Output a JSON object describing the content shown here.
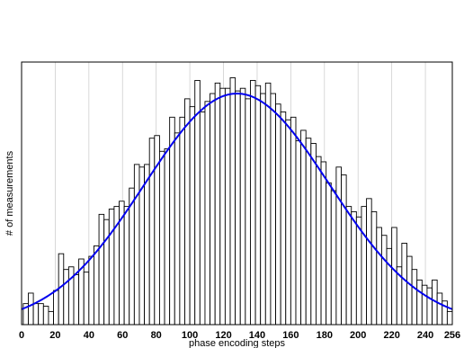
{
  "chart_data": {
    "type": "bar",
    "xlabel": "phase encoding steps",
    "ylabel": "# of measurements",
    "xlim": [
      0,
      256
    ],
    "ylim": [
      0,
      100
    ],
    "grid": "vertical",
    "x_ticks": [
      "0",
      "20",
      "40",
      "60",
      "80",
      "100",
      "120",
      "140",
      "160",
      "180",
      "200",
      "220",
      "240",
      "256"
    ],
    "x_tick_values": [
      0,
      20,
      40,
      60,
      80,
      100,
      120,
      140,
      160,
      180,
      200,
      220,
      240,
      256
    ],
    "bin_width": 3,
    "bin_start": 1,
    "bar_fill": "#ffffff",
    "bar_stroke": "#000000",
    "values": [
      8,
      12,
      8,
      8,
      7,
      5,
      13,
      27,
      21,
      22,
      19,
      25,
      20,
      26,
      30,
      42,
      40,
      44,
      45,
      47,
      45,
      52,
      61,
      60,
      61,
      71,
      72,
      66,
      67,
      79,
      73,
      79,
      86,
      83,
      93,
      81,
      85,
      88,
      92,
      90,
      90,
      94,
      89,
      90,
      86,
      93,
      91,
      88,
      92,
      88,
      84,
      81,
      78,
      79,
      70,
      74,
      71,
      69,
      64,
      62,
      54,
      51,
      60,
      57,
      45,
      43,
      41,
      45,
      48,
      43,
      37,
      34,
      29,
      37,
      22,
      31,
      26,
      21,
      17,
      15,
      14,
      17,
      12,
      9,
      5
    ],
    "series": [
      {
        "name": "",
        "type": "line",
        "color": "#0000ee",
        "shape": "gaussian",
        "mean": 128,
        "sd": 55,
        "peak": 88,
        "baseline": 0
      }
    ]
  }
}
